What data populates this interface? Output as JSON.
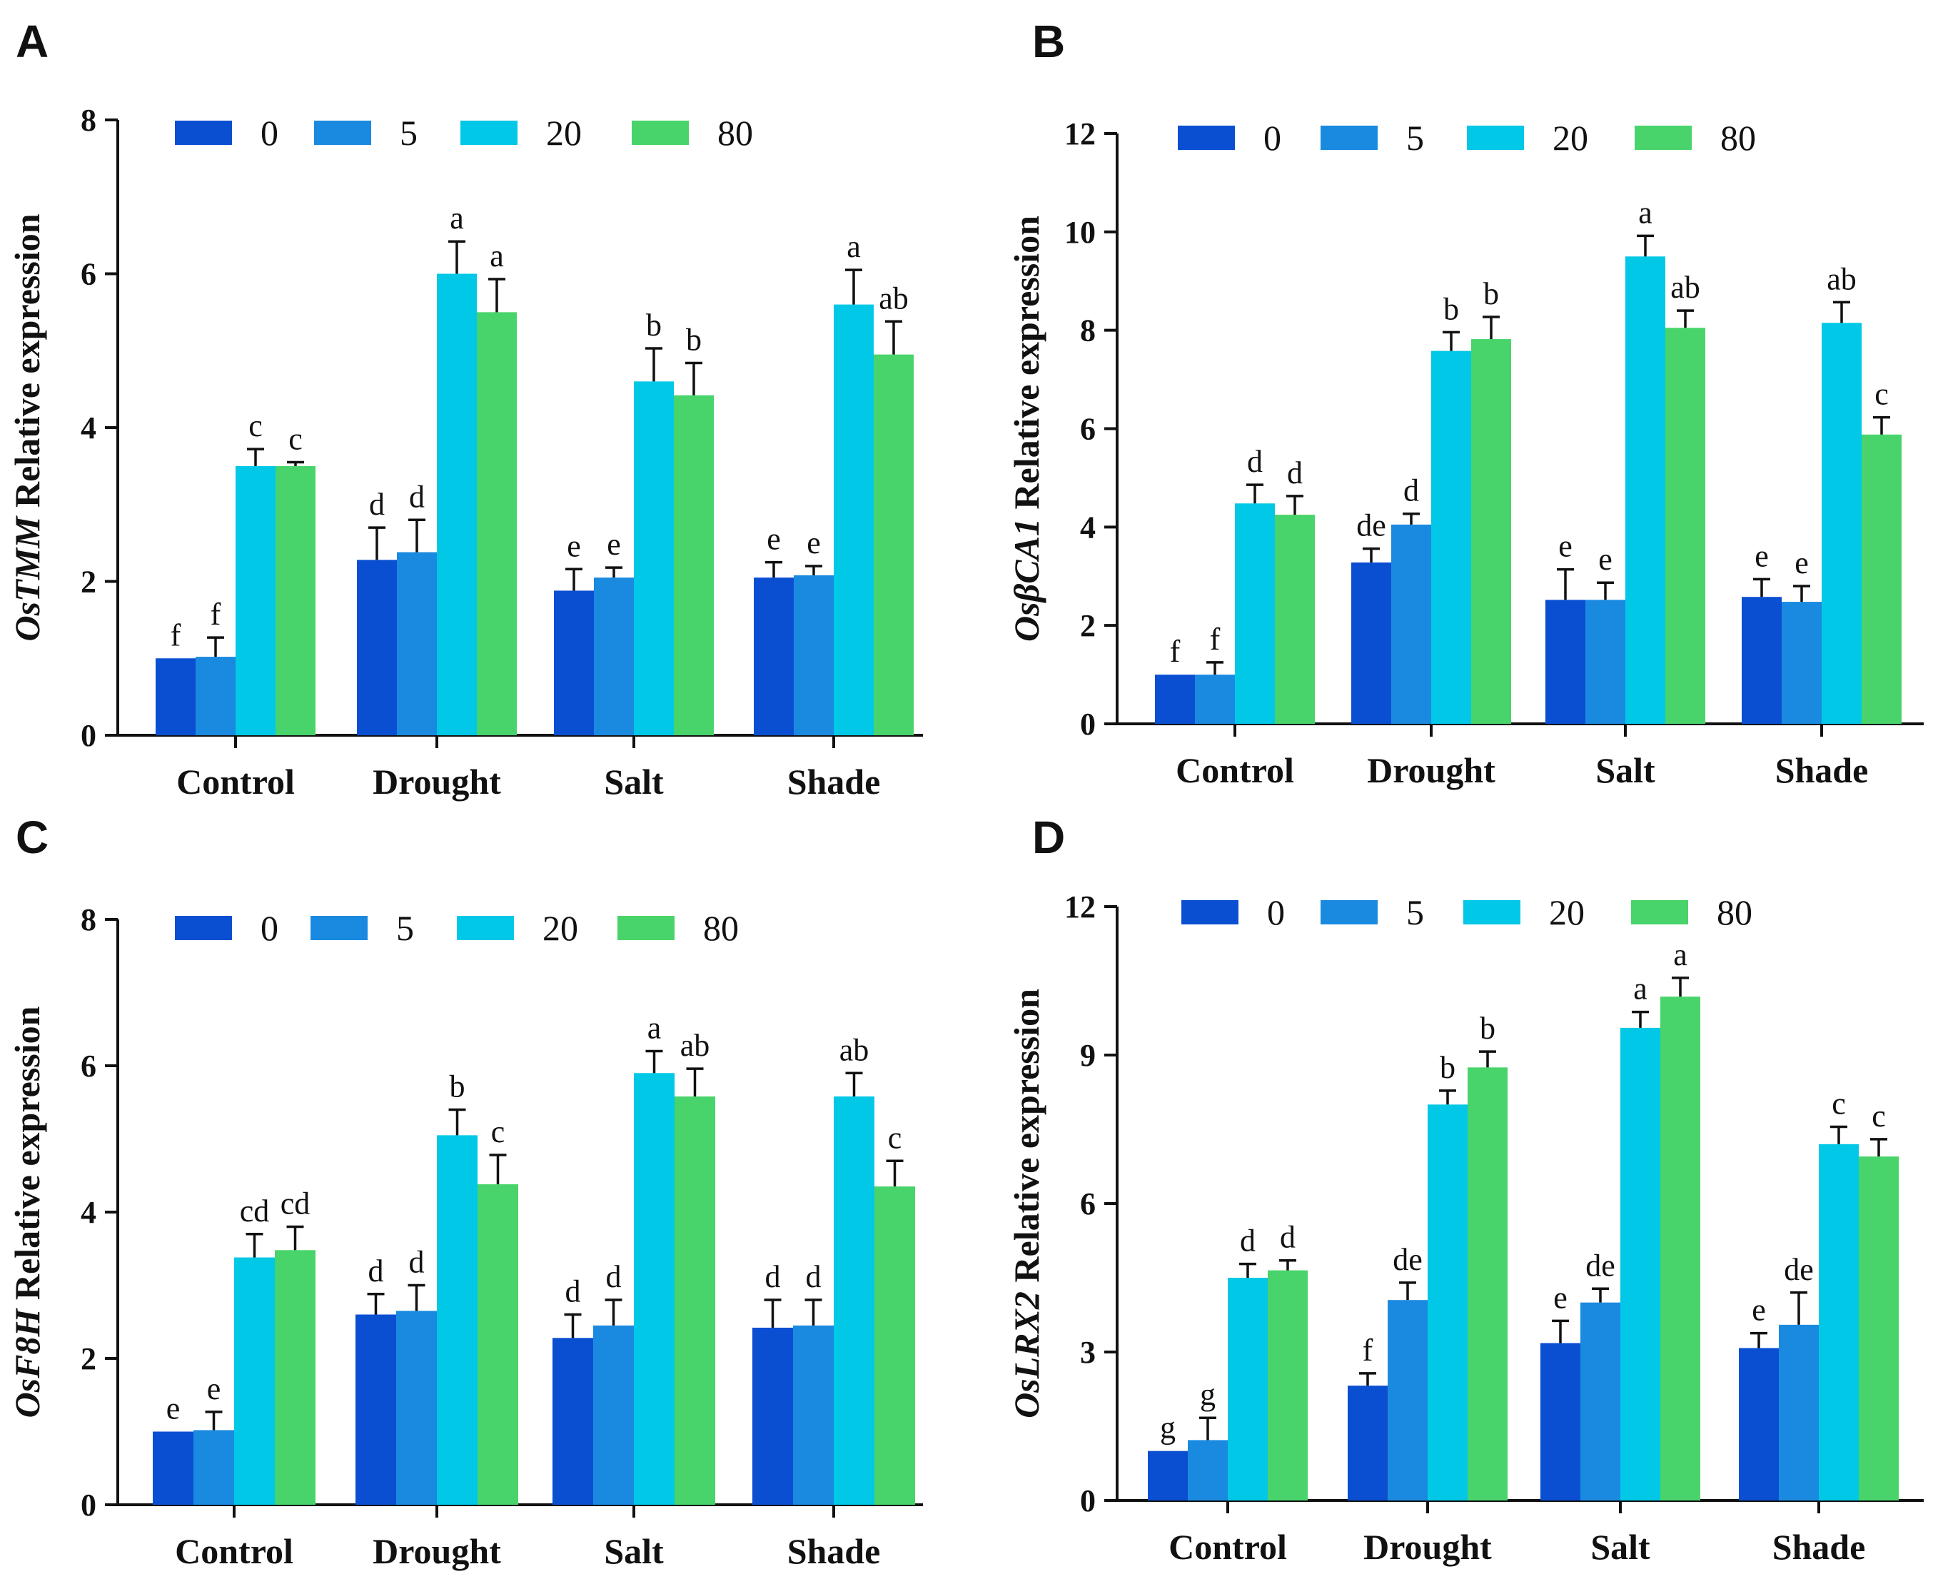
{
  "figure": {
    "series_colors": [
      "#0a4fd2",
      "#1a8ae0",
      "#00c8e6",
      "#48d46a"
    ]
  },
  "chart_data": [
    {
      "panel": "A",
      "type": "bar",
      "ylabel_gene": "OsTMM",
      "ylabel_rest": " Relative expression",
      "ylim": [
        0,
        8
      ],
      "yticks": [
        0,
        2,
        4,
        6,
        8
      ],
      "categories": [
        "Control",
        "Drought",
        "Salt",
        "Shade"
      ],
      "series": [
        {
          "name": "0",
          "values": [
            1.0,
            2.28,
            1.88,
            2.05
          ],
          "errors": [
            0.0,
            0.42,
            0.28,
            0.2
          ],
          "labels": [
            "f",
            "d",
            "e",
            "e"
          ]
        },
        {
          "name": "5",
          "values": [
            1.02,
            2.38,
            2.05,
            2.08
          ],
          "errors": [
            0.25,
            0.42,
            0.13,
            0.12
          ],
          "labels": [
            "f",
            "d",
            "e",
            "e"
          ]
        },
        {
          "name": "20",
          "values": [
            3.5,
            6.0,
            4.6,
            5.6
          ],
          "errors": [
            0.22,
            0.42,
            0.43,
            0.45
          ],
          "labels": [
            "c",
            "a",
            "b",
            "a"
          ]
        },
        {
          "name": "80",
          "values": [
            3.5,
            5.5,
            4.42,
            4.95
          ],
          "errors": [
            0.05,
            0.43,
            0.42,
            0.43
          ],
          "labels": [
            "c",
            "a",
            "b",
            "ab"
          ]
        }
      ]
    },
    {
      "panel": "B",
      "type": "bar",
      "ylabel_gene": "OsβCA1",
      "ylabel_rest": " Relative expression",
      "ylim": [
        0,
        12
      ],
      "yticks": [
        0,
        2,
        4,
        6,
        8,
        10,
        12
      ],
      "categories": [
        "Control",
        "Drought",
        "Salt",
        "Shade"
      ],
      "series": [
        {
          "name": "0",
          "values": [
            1.0,
            3.28,
            2.52,
            2.58
          ],
          "errors": [
            0.0,
            0.28,
            0.62,
            0.36
          ],
          "labels": [
            "f",
            "de",
            "e",
            "e"
          ]
        },
        {
          "name": "5",
          "values": [
            1.0,
            4.05,
            2.52,
            2.48
          ],
          "errors": [
            0.25,
            0.22,
            0.35,
            0.32
          ],
          "labels": [
            "f",
            "d",
            "e",
            "e"
          ]
        },
        {
          "name": "20",
          "values": [
            4.48,
            7.58,
            9.5,
            8.15
          ],
          "errors": [
            0.38,
            0.38,
            0.42,
            0.42
          ],
          "labels": [
            "d",
            "b",
            "a",
            "ab"
          ]
        },
        {
          "name": "80",
          "values": [
            4.25,
            7.82,
            8.05,
            5.88
          ],
          "errors": [
            0.38,
            0.45,
            0.35,
            0.35
          ],
          "labels": [
            "d",
            "b",
            "ab",
            "c"
          ]
        }
      ]
    },
    {
      "panel": "C",
      "type": "bar",
      "ylabel_gene": "OsF8H",
      "ylabel_rest": " Relative expression",
      "ylim": [
        0,
        8
      ],
      "yticks": [
        0,
        2,
        4,
        6,
        8
      ],
      "categories": [
        "Control",
        "Drought",
        "Salt",
        "Shade"
      ],
      "series": [
        {
          "name": "0",
          "values": [
            1.0,
            2.6,
            2.28,
            2.42
          ],
          "errors": [
            0.0,
            0.28,
            0.32,
            0.38
          ],
          "labels": [
            "e",
            "d",
            "d",
            "d"
          ]
        },
        {
          "name": "5",
          "values": [
            1.02,
            2.65,
            2.45,
            2.45
          ],
          "errors": [
            0.25,
            0.35,
            0.35,
            0.35
          ],
          "labels": [
            "e",
            "d",
            "d",
            "d"
          ]
        },
        {
          "name": "20",
          "values": [
            3.38,
            5.05,
            5.9,
            5.58
          ],
          "errors": [
            0.32,
            0.35,
            0.3,
            0.32
          ],
          "labels": [
            "cd",
            "b",
            "a",
            "ab"
          ]
        },
        {
          "name": "80",
          "values": [
            3.48,
            4.38,
            5.58,
            4.35
          ],
          "errors": [
            0.32,
            0.4,
            0.38,
            0.35
          ],
          "labels": [
            "cd",
            "c",
            "ab",
            "c"
          ]
        }
      ]
    },
    {
      "panel": "D",
      "type": "bar",
      "ylabel_gene": "OsLRX2",
      "ylabel_rest": " Relative expression",
      "ylim": [
        0,
        12
      ],
      "yticks": [
        0,
        3,
        6,
        9,
        12
      ],
      "categories": [
        "Control",
        "Drought",
        "Salt",
        "Shade"
      ],
      "series": [
        {
          "name": "0",
          "values": [
            1.0,
            2.32,
            3.18,
            3.08
          ],
          "errors": [
            0.0,
            0.25,
            0.45,
            0.3
          ],
          "labels": [
            "g",
            "f",
            "e",
            "e"
          ]
        },
        {
          "name": "5",
          "values": [
            1.22,
            4.05,
            4.0,
            3.55
          ],
          "errors": [
            0.45,
            0.35,
            0.28,
            0.65
          ],
          "labels": [
            "g",
            "de",
            "de",
            "de"
          ]
        },
        {
          "name": "20",
          "values": [
            4.5,
            8.0,
            9.55,
            7.2
          ],
          "errors": [
            0.28,
            0.28,
            0.32,
            0.35
          ],
          "labels": [
            "d",
            "b",
            "a",
            "c"
          ]
        },
        {
          "name": "80",
          "values": [
            4.65,
            8.75,
            10.18,
            6.95
          ],
          "errors": [
            0.2,
            0.32,
            0.38,
            0.35
          ],
          "labels": [
            "d",
            "b",
            "a",
            "c"
          ]
        }
      ]
    }
  ]
}
